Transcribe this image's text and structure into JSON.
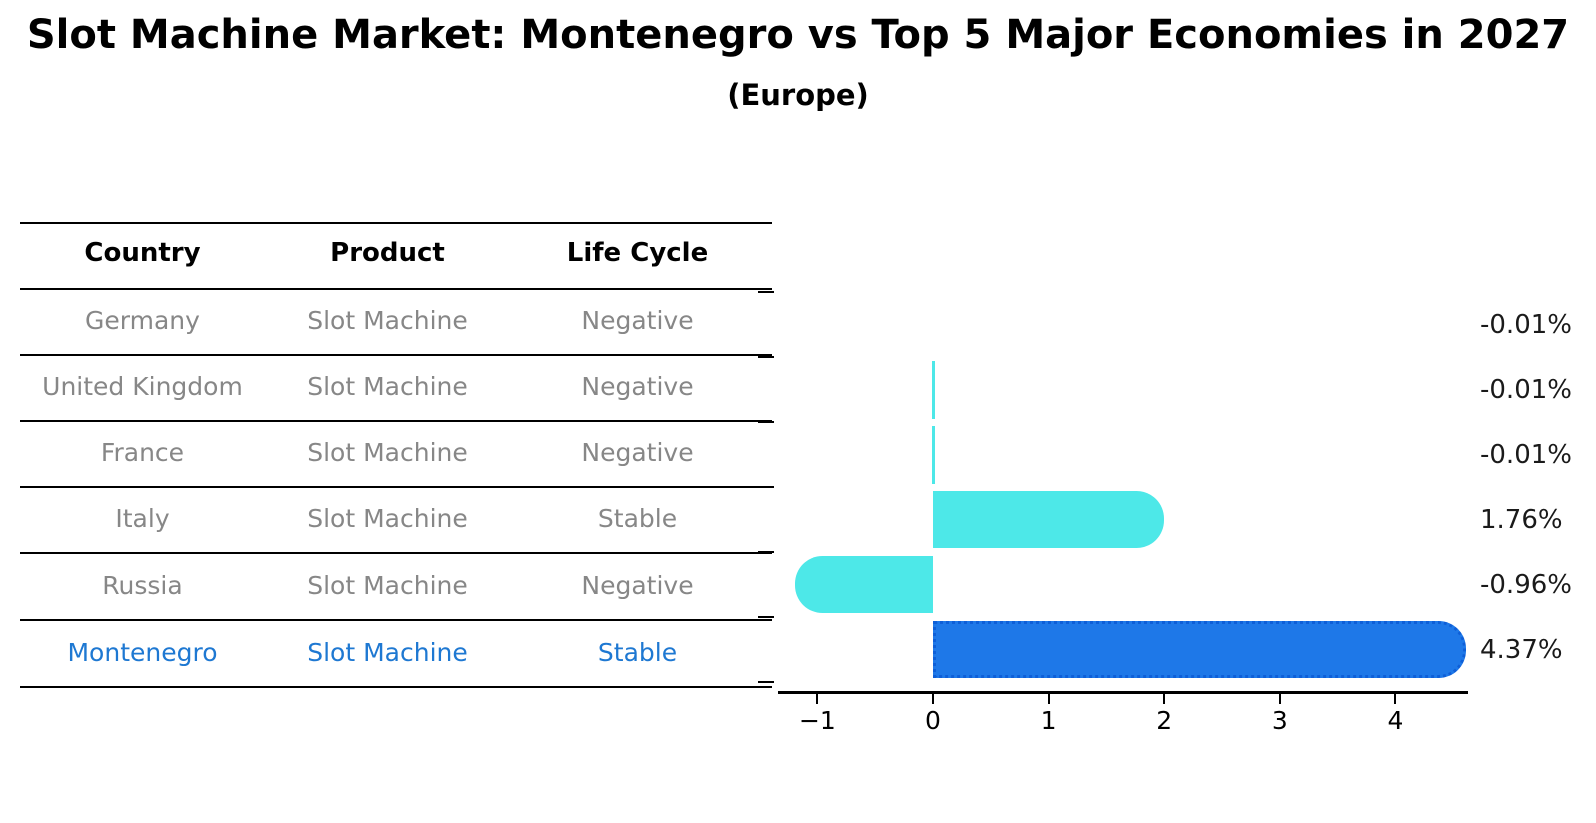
{
  "title": "Slot Machine Market: Montenegro vs Top 5 Major Economies in 2027",
  "subtitle": "(Europe)",
  "table": {
    "headers": [
      "Country",
      "Product",
      "Life Cycle"
    ],
    "rows": [
      {
        "country": "Germany",
        "product": "Slot Machine",
        "life_cycle": "Negative",
        "highlighted": false
      },
      {
        "country": "United Kingdom",
        "product": "Slot Machine",
        "life_cycle": "Negative",
        "highlighted": false
      },
      {
        "country": "France",
        "product": "Slot Machine",
        "life_cycle": "Negative",
        "highlighted": false
      },
      {
        "country": "Italy",
        "product": "Slot Machine",
        "life_cycle": "Stable",
        "highlighted": false
      },
      {
        "country": "Russia",
        "product": "Slot Machine",
        "life_cycle": "Negative",
        "highlighted": false
      },
      {
        "country": "Montenegro",
        "product": "Slot Machine",
        "life_cycle": "Stable",
        "highlighted": true
      }
    ]
  },
  "chart_data": {
    "type": "bar",
    "orientation": "horizontal",
    "title": "",
    "xlabel": "",
    "ylabel": "",
    "categories": [
      "Germany",
      "United Kingdom",
      "France",
      "Italy",
      "Russia",
      "Montenegro"
    ],
    "values": [
      -0.01,
      -0.01,
      -0.01,
      1.76,
      -0.96,
      4.37
    ],
    "value_labels": [
      "-0.01%",
      "-0.01%",
      "-0.01%",
      "1.76%",
      "-0.96%",
      "4.37%"
    ],
    "bar_styles": [
      "none",
      "sliver",
      "sliver",
      "cyan",
      "cyan",
      "blue-dotted"
    ],
    "xtick_values": [
      -1,
      0,
      1,
      2,
      3,
      4
    ],
    "xtick_labels": [
      "−1",
      "0",
      "1",
      "2",
      "3",
      "4"
    ],
    "xlim": [
      -1.34,
      4.63
    ],
    "grid": false,
    "legend": null
  },
  "colors": {
    "bar_cyan": "#4DE8E8",
    "bar_blue": "#1E78E8",
    "bar_blue_border": "#0E5FD8",
    "highlight_text": "#1E78D2",
    "muted_text": "#878787",
    "heading_text": "#000000",
    "axis": "#000000"
  }
}
